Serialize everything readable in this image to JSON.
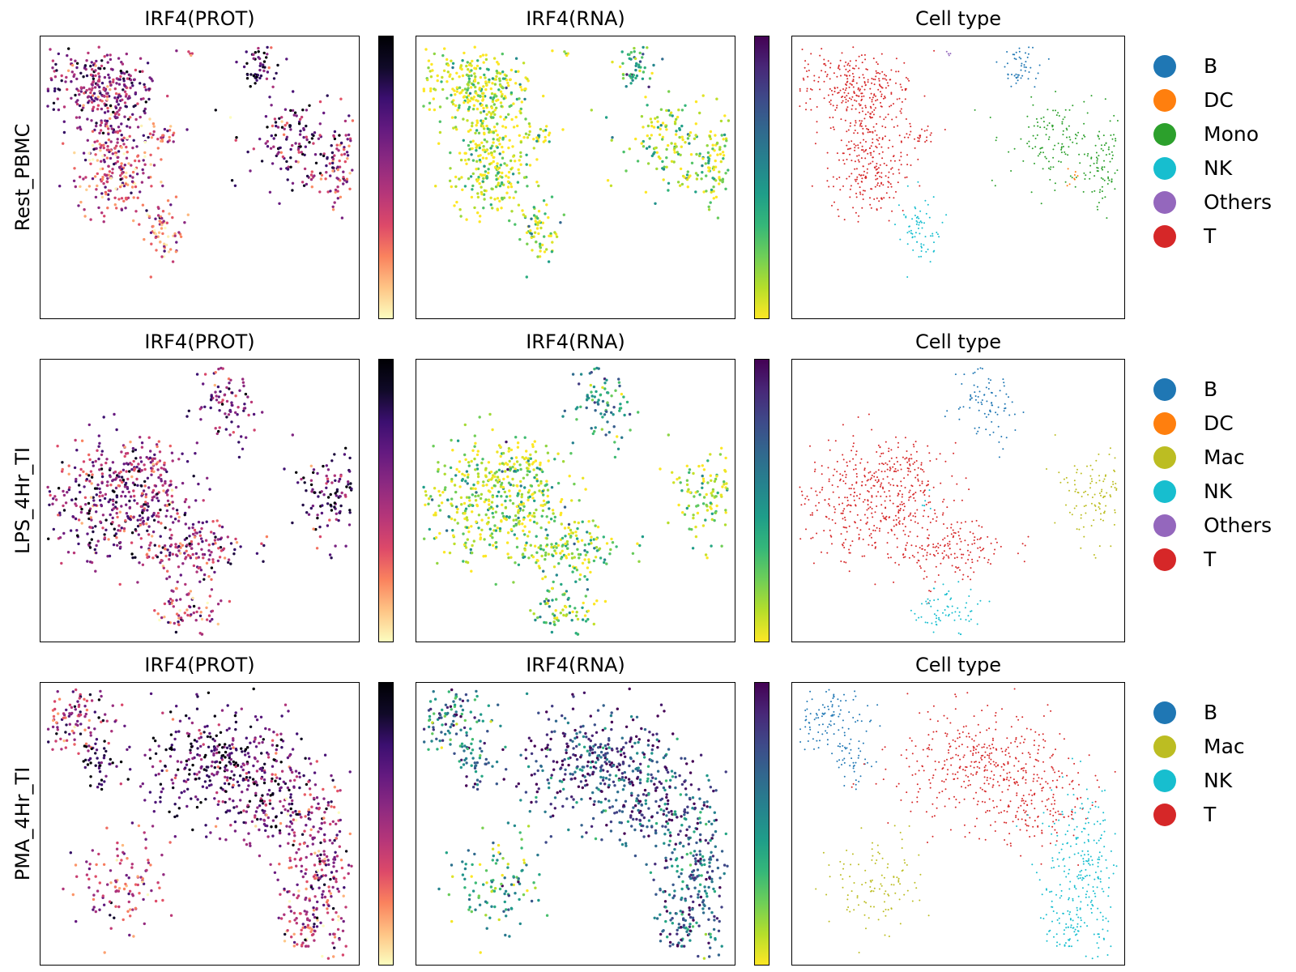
{
  "rows": [
    {
      "label": "Rest_PBMC",
      "panels": [
        "IRF4(PROT)",
        "IRF4(RNA)",
        "Cell type"
      ],
      "legend": [
        {
          "label": "B",
          "color": "#1f77b4"
        },
        {
          "label": "DC",
          "color": "#ff7f0e"
        },
        {
          "label": "Mono",
          "color": "#2ca02c"
        },
        {
          "label": "NK",
          "color": "#17becf"
        },
        {
          "label": "Others",
          "color": "#9467bd"
        },
        {
          "label": "T",
          "color": "#d62728"
        }
      ]
    },
    {
      "label": "LPS_4Hr_TI",
      "panels": [
        "IRF4(PROT)",
        "IRF4(RNA)",
        "Cell type"
      ],
      "legend": [
        {
          "label": "B",
          "color": "#1f77b4"
        },
        {
          "label": "DC",
          "color": "#ff7f0e"
        },
        {
          "label": "Mac",
          "color": "#bcbd22"
        },
        {
          "label": "NK",
          "color": "#17becf"
        },
        {
          "label": "Others",
          "color": "#9467bd"
        },
        {
          "label": "T",
          "color": "#d62728"
        }
      ]
    },
    {
      "label": "PMA_4Hr_TI",
      "panels": [
        "IRF4(PROT)",
        "IRF4(RNA)",
        "Cell type"
      ],
      "legend": [
        {
          "label": "B",
          "color": "#1f77b4"
        },
        {
          "label": "Mac",
          "color": "#bcbd22"
        },
        {
          "label": "NK",
          "color": "#17becf"
        },
        {
          "label": "T",
          "color": "#d62728"
        }
      ]
    }
  ],
  "colormaps": {
    "prot": "magma_r",
    "rna": "viridis_r"
  },
  "chart_data": [
    {
      "type": "scatter",
      "row": "Rest_PBMC",
      "panels": [
        "IRF4(PROT)",
        "IRF4(RNA)",
        "Cell type"
      ],
      "clusters": [
        {
          "cell_type": "T",
          "x": 0.18,
          "y": 0.17,
          "sx": 0.09,
          "sy": 0.06,
          "n": 260,
          "prot": 0.6,
          "rna": 0.05
        },
        {
          "cell_type": "T",
          "x": 0.22,
          "y": 0.32,
          "sx": 0.05,
          "sy": 0.08,
          "n": 130,
          "prot": 0.5,
          "rna": 0.04
        },
        {
          "cell_type": "T",
          "x": 0.24,
          "y": 0.5,
          "sx": 0.06,
          "sy": 0.07,
          "n": 160,
          "prot": 0.35,
          "rna": 0.04
        },
        {
          "cell_type": "T",
          "x": 0.38,
          "y": 0.35,
          "sx": 0.03,
          "sy": 0.02,
          "n": 30,
          "prot": 0.3,
          "rna": 0.05
        },
        {
          "cell_type": "NK",
          "x": 0.38,
          "y": 0.68,
          "sx": 0.03,
          "sy": 0.07,
          "n": 70,
          "prot": 0.3,
          "rna": 0.1
        },
        {
          "cell_type": "B",
          "x": 0.68,
          "y": 0.1,
          "sx": 0.03,
          "sy": 0.05,
          "n": 50,
          "prot": 0.8,
          "rna": 0.35
        },
        {
          "cell_type": "Mono",
          "x": 0.78,
          "y": 0.38,
          "sx": 0.07,
          "sy": 0.08,
          "n": 130,
          "prot": 0.65,
          "rna": 0.15
        },
        {
          "cell_type": "Mono",
          "x": 0.93,
          "y": 0.45,
          "sx": 0.03,
          "sy": 0.09,
          "n": 80,
          "prot": 0.55,
          "rna": 0.12
        },
        {
          "cell_type": "DC",
          "x": 0.84,
          "y": 0.5,
          "sx": 0.01,
          "sy": 0.02,
          "n": 8,
          "prot": 0.5,
          "rna": 0.2
        },
        {
          "cell_type": "Others",
          "x": 0.47,
          "y": 0.06,
          "sx": 0.004,
          "sy": 0.004,
          "n": 4,
          "prot": 0.4,
          "rna": 0.1
        }
      ],
      "colorbar_prot": {
        "cmap": "magma_r"
      },
      "colorbar_rna": {
        "cmap": "viridis_r"
      }
    },
    {
      "type": "scatter",
      "row": "LPS_4Hr_TI",
      "panels": [
        "IRF4(PROT)",
        "IRF4(RNA)",
        "Cell type"
      ],
      "clusters": [
        {
          "cell_type": "T",
          "x": 0.22,
          "y": 0.5,
          "sx": 0.11,
          "sy": 0.1,
          "n": 380,
          "prot": 0.6,
          "rna": 0.15
        },
        {
          "cell_type": "T",
          "x": 0.45,
          "y": 0.66,
          "sx": 0.1,
          "sy": 0.06,
          "n": 180,
          "prot": 0.55,
          "rna": 0.15
        },
        {
          "cell_type": "T",
          "x": 0.33,
          "y": 0.38,
          "sx": 0.05,
          "sy": 0.05,
          "n": 80,
          "prot": 0.5,
          "rna": 0.12
        },
        {
          "cell_type": "B",
          "x": 0.58,
          "y": 0.15,
          "sx": 0.05,
          "sy": 0.07,
          "n": 90,
          "prot": 0.6,
          "rna": 0.45
        },
        {
          "cell_type": "Mac",
          "x": 0.9,
          "y": 0.48,
          "sx": 0.05,
          "sy": 0.08,
          "n": 110,
          "prot": 0.75,
          "rna": 0.1
        },
        {
          "cell_type": "NK",
          "x": 0.47,
          "y": 0.88,
          "sx": 0.05,
          "sy": 0.04,
          "n": 70,
          "prot": 0.4,
          "rna": 0.2
        },
        {
          "cell_type": "NK",
          "x": 0.4,
          "y": 0.5,
          "sx": 0.01,
          "sy": 0.02,
          "n": 6,
          "prot": 0.3,
          "rna": 0.1
        }
      ],
      "colorbar_prot": {
        "cmap": "magma_r"
      },
      "colorbar_rna": {
        "cmap": "viridis_r"
      }
    },
    {
      "type": "scatter",
      "row": "PMA_4Hr_TI",
      "panels": [
        "IRF4(PROT)",
        "IRF4(RNA)",
        "Cell type"
      ],
      "clusters": [
        {
          "cell_type": "B",
          "x": 0.12,
          "y": 0.13,
          "sx": 0.06,
          "sy": 0.06,
          "n": 110,
          "prot": 0.5,
          "rna": 0.6
        },
        {
          "cell_type": "B",
          "x": 0.19,
          "y": 0.28,
          "sx": 0.03,
          "sy": 0.05,
          "n": 40,
          "prot": 0.85,
          "rna": 0.6
        },
        {
          "cell_type": "Mac",
          "x": 0.24,
          "y": 0.7,
          "sx": 0.07,
          "sy": 0.09,
          "n": 110,
          "prot": 0.4,
          "rna": 0.4
        },
        {
          "cell_type": "T",
          "x": 0.54,
          "y": 0.28,
          "sx": 0.12,
          "sy": 0.1,
          "n": 340,
          "prot": 0.75,
          "rna": 0.8
        },
        {
          "cell_type": "T",
          "x": 0.74,
          "y": 0.4,
          "sx": 0.08,
          "sy": 0.1,
          "n": 180,
          "prot": 0.65,
          "rna": 0.75
        },
        {
          "cell_type": "NK",
          "x": 0.86,
          "y": 0.62,
          "sx": 0.06,
          "sy": 0.12,
          "n": 200,
          "prot": 0.5,
          "rna": 0.7
        },
        {
          "cell_type": "NK",
          "x": 0.85,
          "y": 0.86,
          "sx": 0.05,
          "sy": 0.06,
          "n": 90,
          "prot": 0.45,
          "rna": 0.7
        }
      ],
      "colorbar_prot": {
        "cmap": "magma_r"
      },
      "colorbar_rna": {
        "cmap": "viridis_r"
      }
    }
  ]
}
